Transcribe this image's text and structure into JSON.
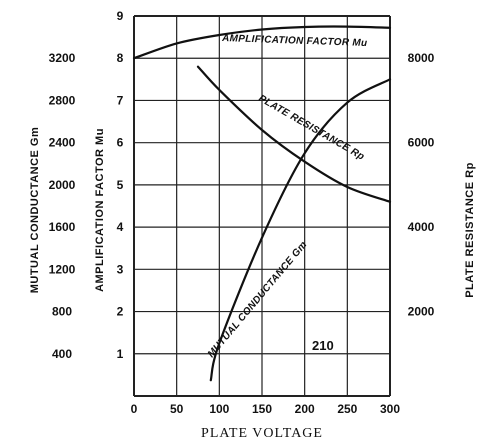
{
  "chart_data": {
    "type": "line",
    "xlabel": "PLATE VOLTAGE",
    "x_ticks": [
      "0",
      "50",
      "100",
      "150",
      "200",
      "250",
      "300"
    ],
    "xlim": [
      0,
      300
    ],
    "annotation": "210",
    "axes": {
      "gm": {
        "label": "MUTUAL CONDUCTANCE Gm",
        "ticks": [
          "400",
          "800",
          "1200",
          "1600",
          "2000",
          "2400",
          "2800",
          "3200"
        ],
        "range": [
          0,
          3600
        ]
      },
      "mu": {
        "label": "AMPLIFICATION FACTOR Mu",
        "ticks": [
          "1",
          "2",
          "3",
          "4",
          "5",
          "6",
          "7",
          "8",
          "9"
        ],
        "range": [
          0,
          9
        ]
      },
      "rp": {
        "label": "PLATE RESISTANCE Rp",
        "ticks": [
          "2000",
          "4000",
          "6000",
          "8000"
        ],
        "range": [
          0,
          9000
        ]
      }
    },
    "series": [
      {
        "name": "AMPLIFICATION FACTOR Mu",
        "axis": "mu",
        "x": [
          0,
          50,
          100,
          150,
          200,
          250,
          300
        ],
        "y": [
          8.0,
          8.35,
          8.55,
          8.68,
          8.74,
          8.75,
          8.72
        ]
      },
      {
        "name": "PLATE RESISTANCE Rp",
        "axis": "rp",
        "x": [
          75,
          100,
          150,
          200,
          250,
          300
        ],
        "y": [
          7800,
          7250,
          6300,
          5550,
          4950,
          4600
        ]
      },
      {
        "name": "MUTUAL CONDUCTANCE Gm",
        "axis": "gm",
        "x": [
          90,
          100,
          150,
          200,
          250,
          300
        ],
        "y": [
          150,
          500,
          1500,
          2300,
          2780,
          3000
        ]
      }
    ]
  }
}
